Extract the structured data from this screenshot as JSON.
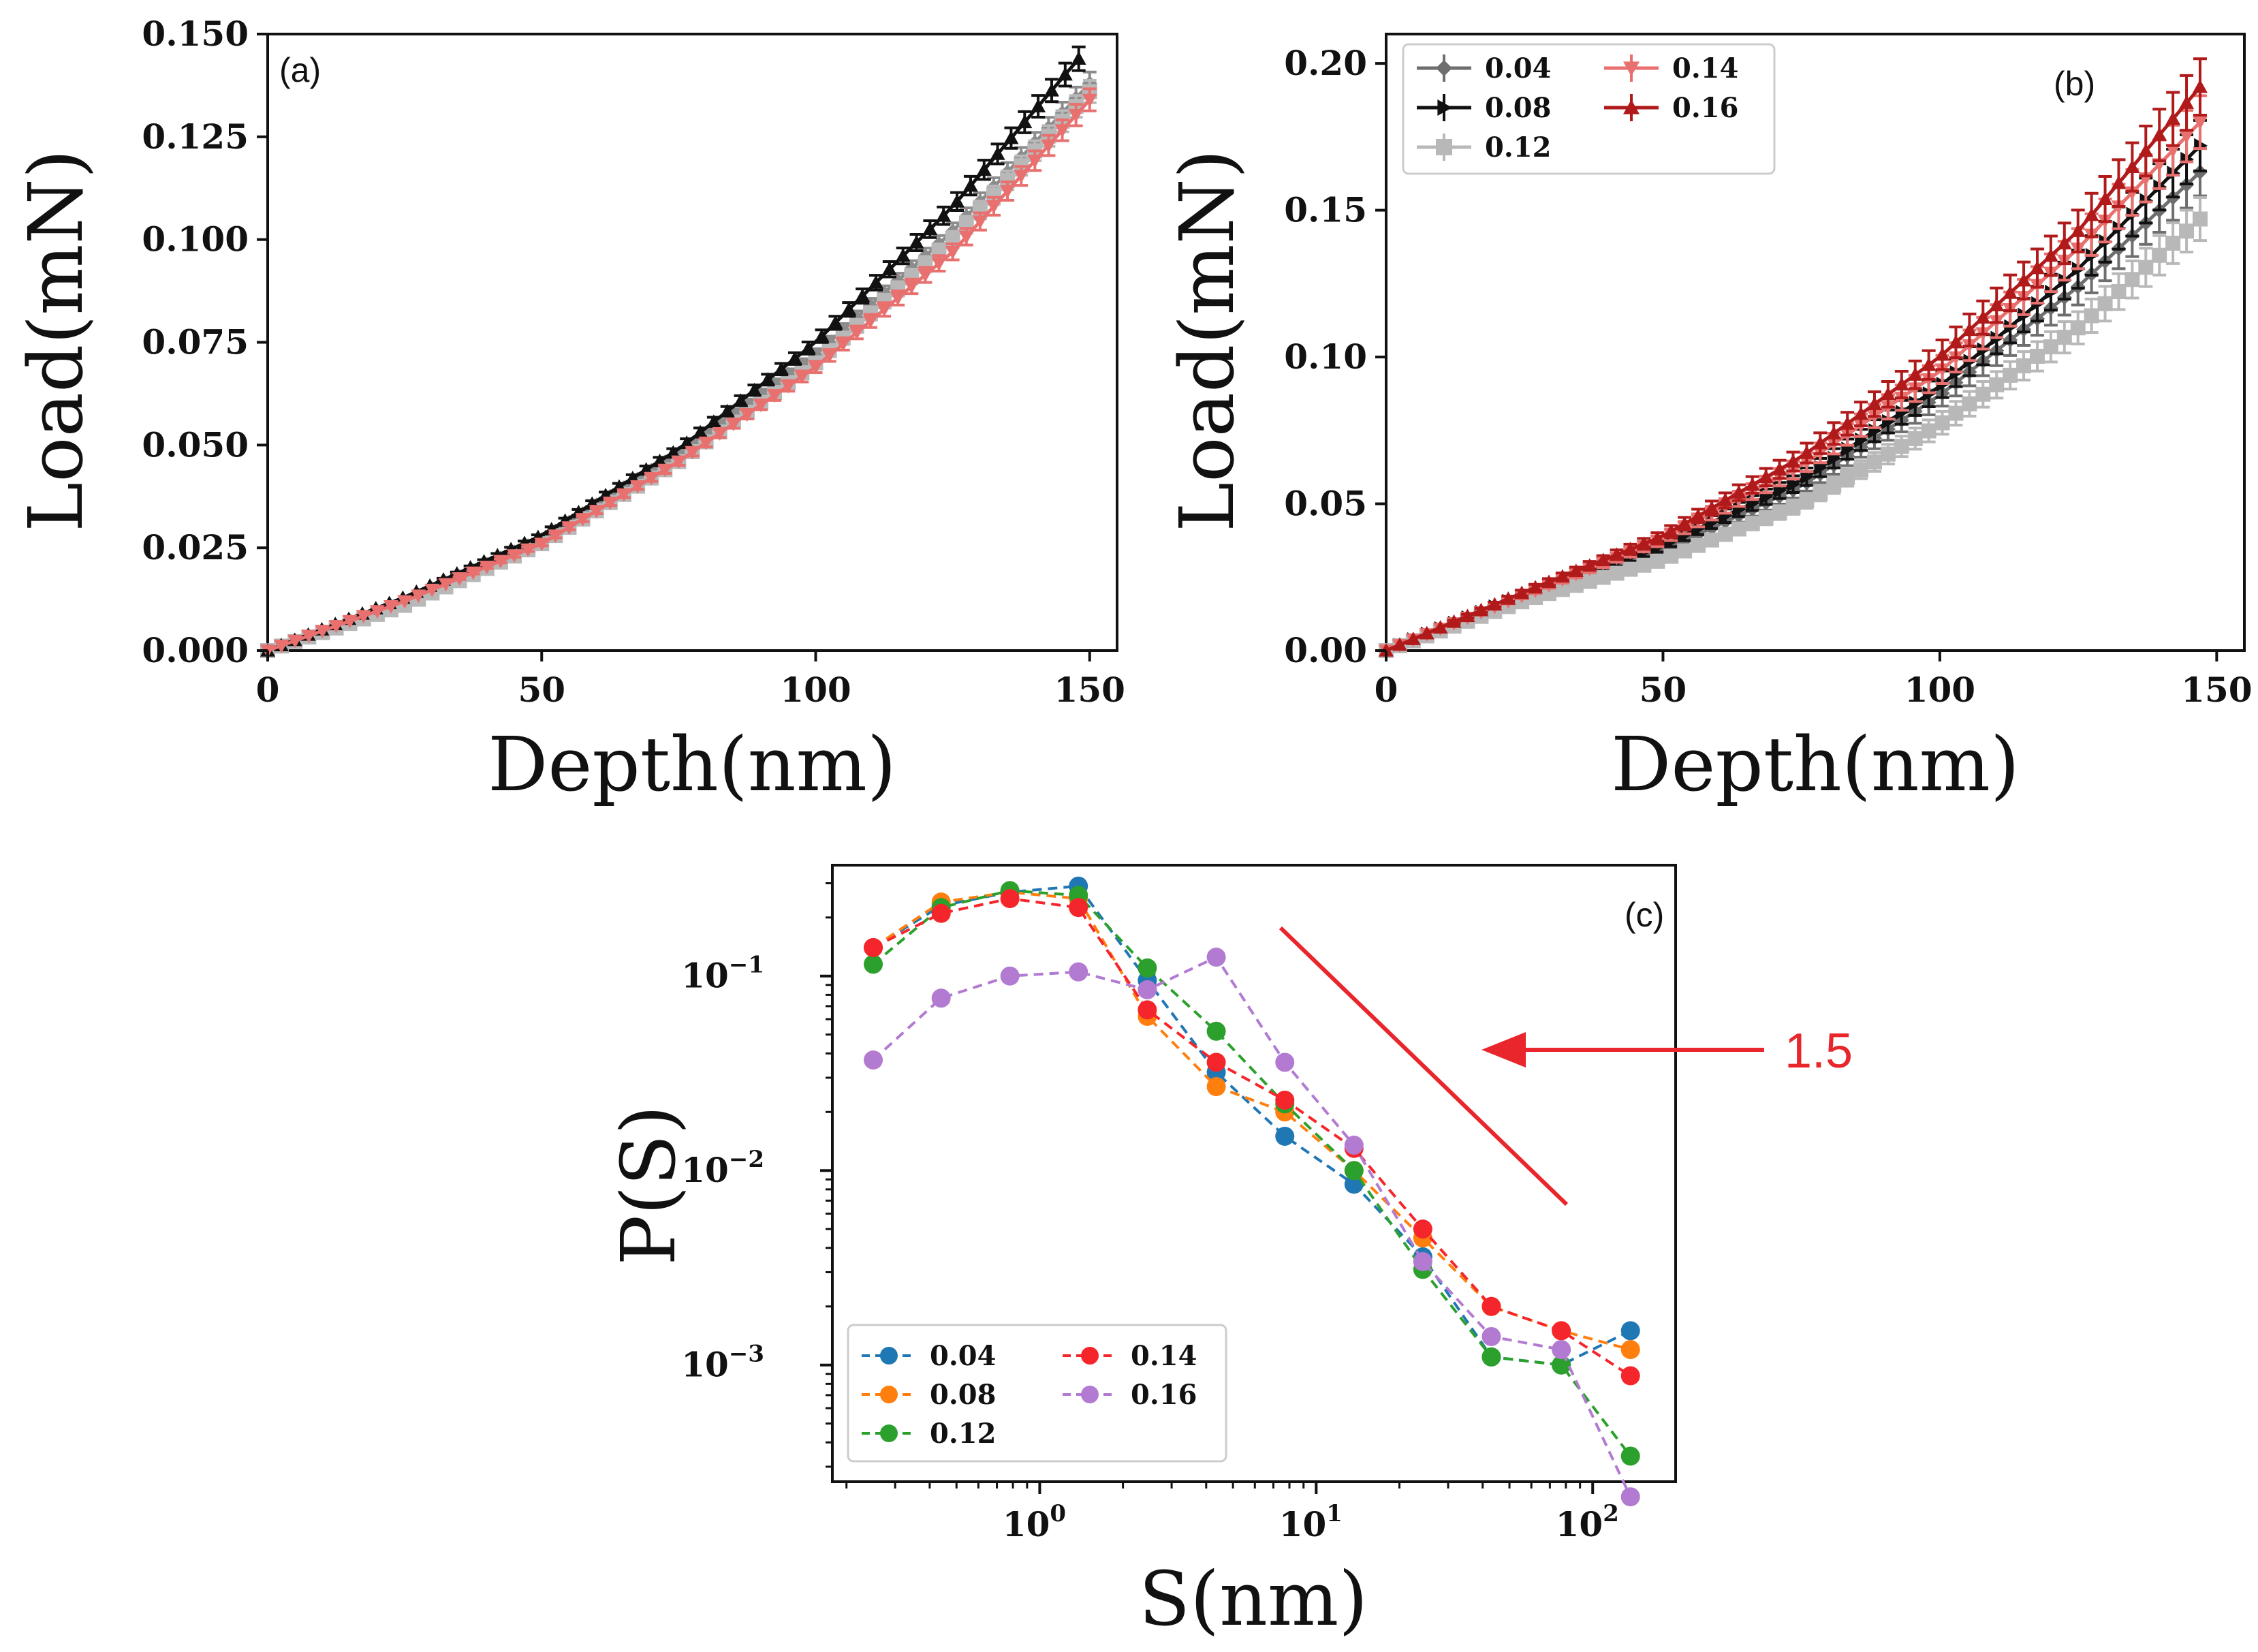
{
  "chart_data": [
    {
      "panel": "(a)",
      "type": "line",
      "xlabel": "Depth(nm)",
      "ylabel": "Load(mN)",
      "xlim": [
        0,
        155
      ],
      "ylim": [
        0,
        0.15
      ],
      "xticks": [
        0,
        50,
        100,
        150
      ],
      "xtick_labels": [
        "0",
        "50",
        "100",
        "150"
      ],
      "yticks": [
        0,
        0.025,
        0.05,
        0.075,
        0.1,
        0.125,
        0.15
      ],
      "ytick_labels": [
        "0.000",
        "0.025",
        "0.050",
        "0.075",
        "0.100",
        "0.125",
        "0.150"
      ],
      "series": [
        {
          "name": "grey",
          "color": "#8c8c8c",
          "marker": "diamond",
          "x": [
            0,
            25,
            50,
            75,
            100,
            125,
            150
          ],
          "y": [
            0,
            0.012,
            0.027,
            0.048,
            0.072,
            0.102,
            0.138
          ]
        },
        {
          "name": "light grey",
          "color": "#b8b8b8",
          "marker": "square",
          "x": [
            0,
            25,
            50,
            75,
            100,
            125,
            150
          ],
          "y": [
            0,
            0.011,
            0.026,
            0.046,
            0.07,
            0.1,
            0.136
          ]
        },
        {
          "name": "black",
          "color": "#111111",
          "marker": "triangle",
          "x": [
            0,
            25,
            50,
            75,
            100,
            125,
            148
          ],
          "y": [
            0,
            0.013,
            0.028,
            0.049,
            0.075,
            0.108,
            0.144
          ]
        },
        {
          "name": "light red",
          "color": "#e8706f",
          "marker": "triangle-down",
          "x": [
            0,
            25,
            50,
            75,
            100,
            125,
            150
          ],
          "y": [
            0,
            0.012,
            0.026,
            0.046,
            0.069,
            0.097,
            0.134
          ]
        }
      ]
    },
    {
      "panel": "(b)",
      "type": "line",
      "xlabel": "Depth(nm)",
      "ylabel": "Load(mN)",
      "xlim": [
        0,
        155
      ],
      "ylim": [
        0,
        0.21
      ],
      "xticks": [
        0,
        50,
        100,
        150
      ],
      "xtick_labels": [
        "0",
        "50",
        "100",
        "150"
      ],
      "yticks": [
        0,
        0.05,
        0.1,
        0.15,
        0.2
      ],
      "ytick_labels": [
        "0.00",
        "0.05",
        "0.10",
        "0.15",
        "0.20"
      ],
      "legend": "top-left",
      "series": [
        {
          "name": "0.04",
          "color": "#6e6e6e",
          "marker": "diamond",
          "x": [
            0,
            25,
            50,
            75,
            100,
            125,
            147
          ],
          "y": [
            0,
            0.018,
            0.034,
            0.056,
            0.087,
            0.124,
            0.163
          ]
        },
        {
          "name": "0.08",
          "color": "#111111",
          "marker": "triangle-right",
          "x": [
            0,
            25,
            50,
            75,
            100,
            125,
            147
          ],
          "y": [
            0,
            0.019,
            0.036,
            0.058,
            0.09,
            0.13,
            0.172
          ]
        },
        {
          "name": "0.12",
          "color": "#b8b8b8",
          "marker": "square",
          "x": [
            0,
            25,
            50,
            75,
            100,
            125,
            147
          ],
          "y": [
            0,
            0.017,
            0.031,
            0.05,
            0.077,
            0.11,
            0.147
          ]
        },
        {
          "name": "0.14",
          "color": "#e8706f",
          "marker": "triangle-down",
          "x": [
            0,
            25,
            50,
            75,
            100,
            125,
            147
          ],
          "y": [
            0,
            0.019,
            0.038,
            0.063,
            0.095,
            0.137,
            0.18
          ]
        },
        {
          "name": "0.16",
          "color": "#b01a1a",
          "marker": "triangle",
          "x": [
            0,
            25,
            50,
            75,
            100,
            125,
            147
          ],
          "y": [
            0,
            0.02,
            0.039,
            0.066,
            0.1,
            0.143,
            0.192
          ]
        }
      ]
    },
    {
      "panel": "(c)",
      "type": "line",
      "scale": "log-log",
      "xlabel": "S(nm)",
      "ylabel": "P(S)",
      "xlim_log10": [
        -0.75,
        2.3
      ],
      "ylim_log10": [
        -3.6,
        -0.43
      ],
      "xtick_labels": [
        {
          "base": "10",
          "exp": "0",
          "value": 1
        },
        {
          "base": "10",
          "exp": "1",
          "value": 10
        },
        {
          "base": "10",
          "exp": "2",
          "value": 100
        }
      ],
      "ytick_labels": [
        {
          "base": "10",
          "exp": "−1",
          "value": 0.1
        },
        {
          "base": "10",
          "exp": "−2",
          "value": 0.01
        },
        {
          "base": "10",
          "exp": "−3",
          "value": 0.001
        }
      ],
      "legend": "bottom-left",
      "annotation": {
        "text": "1.5",
        "slope": -1.5
      },
      "x": [
        0.25,
        0.44,
        0.78,
        1.38,
        2.45,
        4.35,
        7.7,
        13.7,
        24.3,
        43,
        77,
        137
      ],
      "series": [
        {
          "name": "0.04",
          "color": "#1f77b4",
          "y": [
            0.14,
            0.23,
            0.27,
            0.29,
            0.095,
            0.032,
            0.015,
            0.0085,
            0.0036,
            0.0011,
            0.001,
            0.0015
          ]
        },
        {
          "name": "0.08",
          "color": "#ff7f0e",
          "y": [
            0.14,
            0.24,
            0.27,
            0.25,
            0.062,
            0.027,
            0.02,
            0.01,
            0.0045,
            0.002,
            0.0015,
            0.0012
          ]
        },
        {
          "name": "0.12",
          "color": "#2ca02c",
          "y": [
            0.115,
            0.225,
            0.275,
            0.26,
            0.11,
            0.052,
            0.022,
            0.01,
            0.0031,
            0.0011,
            0.001,
            0.00034
          ]
        },
        {
          "name": "0.14",
          "color": "#f5262b",
          "y": [
            0.14,
            0.21,
            0.25,
            0.225,
            0.067,
            0.036,
            0.023,
            0.013,
            0.005,
            0.002,
            0.0015,
            0.00088
          ]
        },
        {
          "name": "0.16",
          "color": "#b27bd1",
          "y": [
            0.037,
            0.077,
            0.1,
            0.105,
            0.085,
            0.125,
            0.036,
            0.0135,
            0.0034,
            0.0014,
            0.0012,
            0.00021
          ]
        }
      ]
    }
  ]
}
